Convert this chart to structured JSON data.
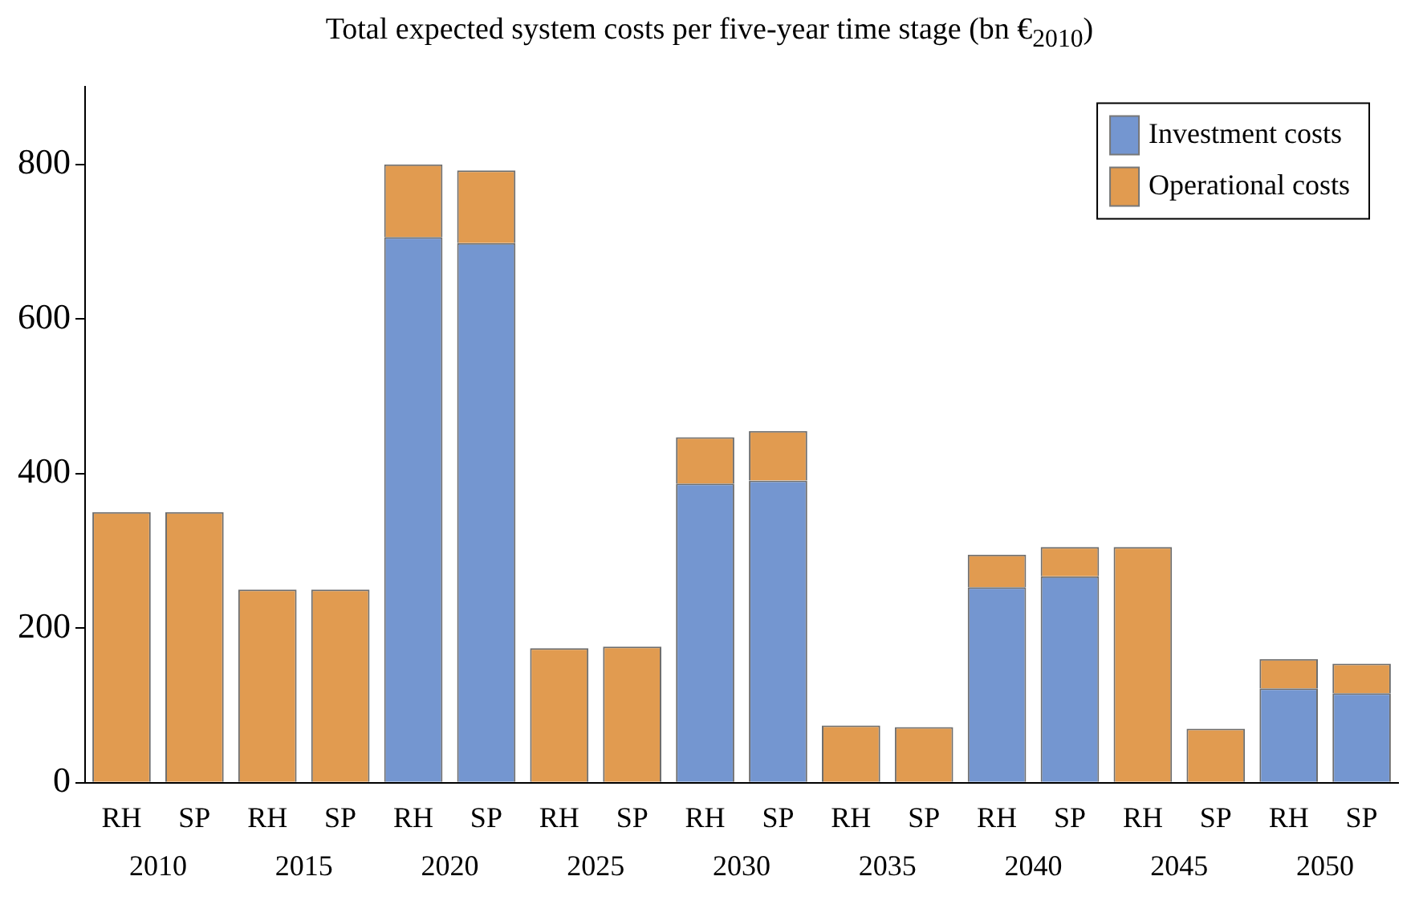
{
  "chart_data": {
    "type": "bar",
    "title": "Total expected system costs per five-year time stage (bn €$_{2010}$)",
    "categories": [
      "RH",
      "SP",
      "RH",
      "SP",
      "RH",
      "SP",
      "RH",
      "SP",
      "RH",
      "SP",
      "RH",
      "SP",
      "RH",
      "SP",
      "RH",
      "SP",
      "RH",
      "SP"
    ],
    "annotations": [
      "2010",
      "2015",
      "2020",
      "2025",
      "2030",
      "2035",
      "2040",
      "2045",
      "2050"
    ],
    "stacked": true,
    "series": [
      {
        "name": "Investment costs",
        "color": "#7496d0",
        "values": [
          0,
          0,
          0,
          0,
          706,
          698,
          0,
          0,
          387,
          391,
          0,
          0,
          253,
          267,
          0,
          0,
          122,
          116
        ]
      },
      {
        "name": "Operational costs",
        "color": "#e19b50",
        "values": [
          350,
          350,
          250,
          250,
          94,
          94,
          174,
          176,
          60,
          64,
          74,
          72,
          42,
          38,
          305,
          70,
          38,
          38
        ]
      }
    ],
    "ylim": [
      0,
      900
    ],
    "yticks": [
      0,
      200,
      400,
      600,
      800
    ],
    "grid": false,
    "legend": "top right"
  }
}
